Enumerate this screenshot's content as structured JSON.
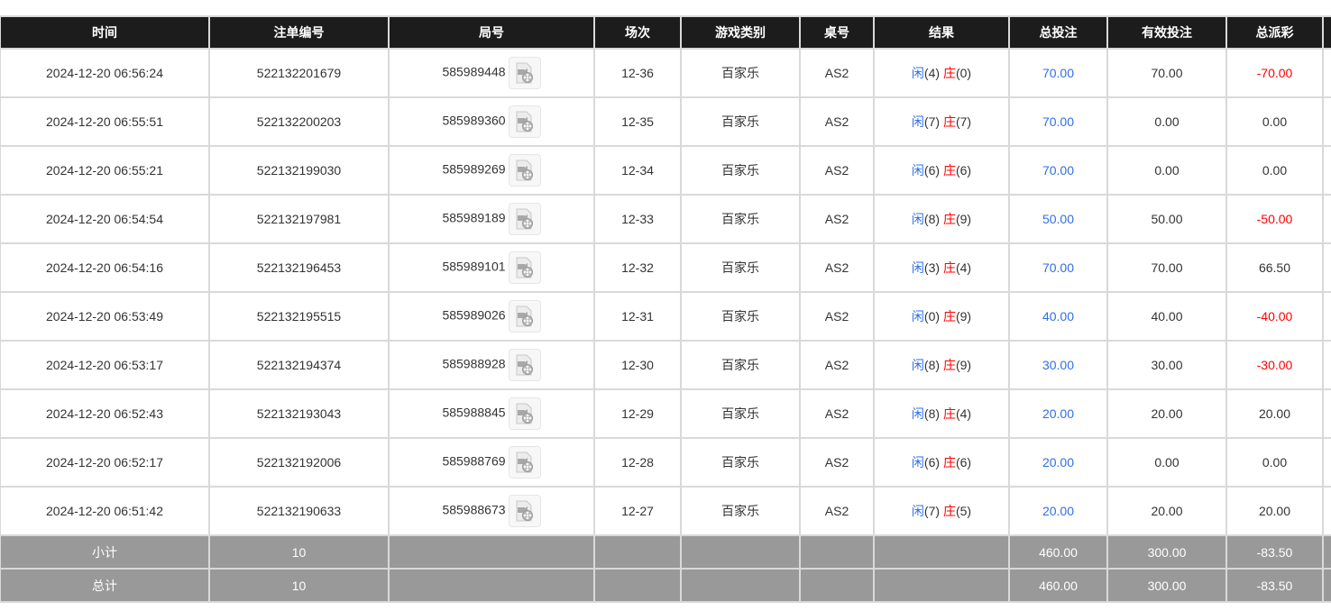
{
  "colors": {
    "header_bg": "#1c1c1c",
    "positive_blue": "#2f6fe8",
    "negative_red": "#ff0000",
    "total_row_bg": "#999999"
  },
  "headers": [
    "时间",
    "注单编号",
    "局号",
    "场次",
    "游戏类别",
    "桌号",
    "结果",
    "总投注",
    "有效投注",
    "总派彩",
    ""
  ],
  "result_labels": {
    "player": "闲",
    "banker": "庄"
  },
  "rows": [
    {
      "time": "2024-12-20 06:56:24",
      "bet_id": "522132201679",
      "round": "585989448",
      "session": "12-36",
      "game": "百家乐",
      "table": "AS2",
      "player": "(4)",
      "banker": "(0)",
      "total_bet": "70.00",
      "valid_bet": "70.00",
      "payout": "-70.00",
      "payout_negative": true
    },
    {
      "time": "2024-12-20 06:55:51",
      "bet_id": "522132200203",
      "round": "585989360",
      "session": "12-35",
      "game": "百家乐",
      "table": "AS2",
      "player": "(7)",
      "banker": "(7)",
      "total_bet": "70.00",
      "valid_bet": "0.00",
      "payout": "0.00",
      "payout_negative": false
    },
    {
      "time": "2024-12-20 06:55:21",
      "bet_id": "522132199030",
      "round": "585989269",
      "session": "12-34",
      "game": "百家乐",
      "table": "AS2",
      "player": "(6)",
      "banker": "(6)",
      "total_bet": "70.00",
      "valid_bet": "0.00",
      "payout": "0.00",
      "payout_negative": false
    },
    {
      "time": "2024-12-20 06:54:54",
      "bet_id": "522132197981",
      "round": "585989189",
      "session": "12-33",
      "game": "百家乐",
      "table": "AS2",
      "player": "(8)",
      "banker": "(9)",
      "total_bet": "50.00",
      "valid_bet": "50.00",
      "payout": "-50.00",
      "payout_negative": true
    },
    {
      "time": "2024-12-20 06:54:16",
      "bet_id": "522132196453",
      "round": "585989101",
      "session": "12-32",
      "game": "百家乐",
      "table": "AS2",
      "player": "(3)",
      "banker": "(4)",
      "total_bet": "70.00",
      "valid_bet": "70.00",
      "payout": "66.50",
      "payout_negative": false
    },
    {
      "time": "2024-12-20 06:53:49",
      "bet_id": "522132195515",
      "round": "585989026",
      "session": "12-31",
      "game": "百家乐",
      "table": "AS2",
      "player": "(0)",
      "banker": "(9)",
      "total_bet": "40.00",
      "valid_bet": "40.00",
      "payout": "-40.00",
      "payout_negative": true
    },
    {
      "time": "2024-12-20 06:53:17",
      "bet_id": "522132194374",
      "round": "585988928",
      "session": "12-30",
      "game": "百家乐",
      "table": "AS2",
      "player": "(8)",
      "banker": "(9)",
      "total_bet": "30.00",
      "valid_bet": "30.00",
      "payout": "-30.00",
      "payout_negative": true
    },
    {
      "time": "2024-12-20 06:52:43",
      "bet_id": "522132193043",
      "round": "585988845",
      "session": "12-29",
      "game": "百家乐",
      "table": "AS2",
      "player": "(8)",
      "banker": "(4)",
      "total_bet": "20.00",
      "valid_bet": "20.00",
      "payout": "20.00",
      "payout_negative": false
    },
    {
      "time": "2024-12-20 06:52:17",
      "bet_id": "522132192006",
      "round": "585988769",
      "session": "12-28",
      "game": "百家乐",
      "table": "AS2",
      "player": "(6)",
      "banker": "(6)",
      "total_bet": "20.00",
      "valid_bet": "0.00",
      "payout": "0.00",
      "payout_negative": false
    },
    {
      "time": "2024-12-20 06:51:42",
      "bet_id": "522132190633",
      "round": "585988673",
      "session": "12-27",
      "game": "百家乐",
      "table": "AS2",
      "player": "(7)",
      "banker": "(5)",
      "total_bet": "20.00",
      "valid_bet": "20.00",
      "payout": "20.00",
      "payout_negative": false
    }
  ],
  "totals": [
    {
      "label": "小计",
      "count": "10",
      "total_bet": "460.00",
      "valid_bet": "300.00",
      "payout": "-83.50"
    },
    {
      "label": "总计",
      "count": "10",
      "total_bet": "460.00",
      "valid_bet": "300.00",
      "payout": "-83.50"
    }
  ]
}
